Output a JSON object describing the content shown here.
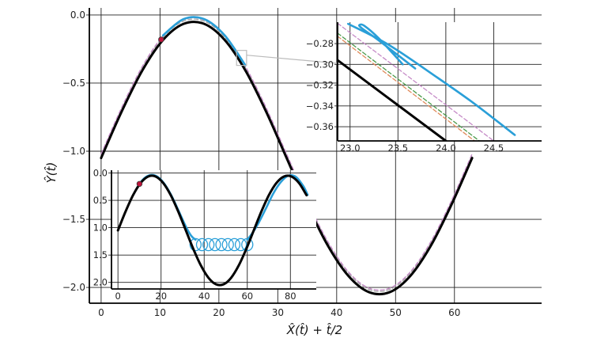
{
  "chart_data": [
    {
      "type": "line",
      "role": "main",
      "xlabel": "X̂(t̂) + t̂/2",
      "ylabel": "Ŷ(t̂)",
      "xlim": [
        -2,
        74.8
      ],
      "ylim": [
        -2.116,
        0.052
      ],
      "grid": true,
      "xticks": [
        0,
        10,
        20,
        30,
        40,
        50,
        60
      ],
      "xtick_labels": [
        "0",
        "10",
        "20",
        "30",
        "40",
        "50",
        "60"
      ],
      "yticks": [
        0,
        -0.5,
        -1.0,
        -1.5,
        -2.0
      ],
      "ytick_labels": [
        "0.0",
        "−0.5",
        "−1.0",
        "−1.5",
        "−2.0"
      ],
      "series": [
        {
          "color": "#a0a0a0",
          "style": "dashed",
          "x": [
            0,
            3.5,
            7,
            10.5,
            14,
            17.5,
            21,
            24.5,
            28,
            31.5,
            35,
            38.5,
            42,
            45.5,
            49,
            52.5,
            56,
            59.5,
            63
          ],
          "y": [
            -1.03,
            -0.688,
            -0.387,
            -0.164,
            -0.045,
            -0.045,
            -0.164,
            -0.387,
            -0.688,
            -1.03,
            -1.372,
            -1.673,
            -1.896,
            -2.015,
            -2.015,
            -1.896,
            -1.673,
            -1.372,
            -1.03
          ]
        },
        {
          "color": "#c58ac7",
          "style": "dashed",
          "x": [
            0,
            3.5,
            7,
            10.5,
            14,
            17.5,
            21,
            24.5,
            28,
            31.5,
            35,
            38.5,
            42,
            45.5,
            49,
            52.5,
            56,
            59.5,
            63
          ],
          "y": [
            -1.02,
            -0.678,
            -0.377,
            -0.154,
            -0.035,
            -0.035,
            -0.154,
            -0.377,
            -0.678,
            -1.02,
            -1.362,
            -1.663,
            -1.886,
            -2.005,
            -2.005,
            -1.886,
            -1.663,
            -1.362,
            -1.02
          ]
        },
        {
          "color": "#000000",
          "style": "solid",
          "x": [
            0,
            3.5,
            7,
            10.5,
            14,
            17.5,
            21,
            24.5,
            28,
            31.5,
            35,
            38.5,
            42,
            45.5,
            49,
            52.5,
            56,
            59.5,
            63
          ],
          "y": [
            -1.05,
            -0.708,
            -0.407,
            -0.184,
            -0.065,
            -0.065,
            -0.184,
            -0.407,
            -0.708,
            -1.05,
            -1.392,
            -1.693,
            -1.916,
            -2.035,
            -2.035,
            -1.916,
            -1.693,
            -1.392,
            -1.05
          ]
        },
        {
          "color": "#2a9fd8",
          "style": "solid",
          "x": [
            10.5,
            14,
            17.5,
            21,
            24.5
          ],
          "y": [
            -0.15,
            -0.03,
            -0.03,
            -0.15,
            -0.37
          ]
        }
      ],
      "marker": {
        "x": 10.2,
        "y": -0.18,
        "color": "#c0143c"
      },
      "zoom_box": {
        "x": [
          23,
          24.7
        ],
        "y": [
          -0.26,
          -0.37
        ]
      }
    },
    {
      "type": "line",
      "role": "inset-bottom-left",
      "xlim": [
        -3,
        92
      ],
      "ylim": [
        -2.12,
        0.05
      ],
      "grid": true,
      "xticks": [
        0,
        20,
        40,
        60,
        80
      ],
      "xtick_labels": [
        "0",
        "20",
        "40",
        "60",
        "80"
      ],
      "yticks": [
        0,
        -0.5,
        -1.0,
        -1.5,
        -2.0
      ],
      "ytick_labels": [
        "0.0",
        "0.5",
        "1.0",
        "1.5",
        "2.0"
      ],
      "series": [
        {
          "color": "#2a9fd8",
          "style": "solid",
          "x": [
            7,
            10.5,
            14,
            17.5,
            21,
            24.5,
            28,
            31.5,
            34,
            36
          ],
          "y": [
            -0.407,
            -0.17,
            -0.05,
            -0.05,
            -0.17,
            -0.39,
            -0.68,
            -0.98,
            -1.15,
            -1.22
          ]
        },
        {
          "color": "#2a9fd8",
          "style": "solid",
          "x": [
            60,
            62,
            65,
            68.5,
            72,
            75.5,
            79,
            82.5,
            86,
            88
          ],
          "y": [
            -1.22,
            -1.12,
            -0.93,
            -0.66,
            -0.38,
            -0.17,
            -0.05,
            -0.07,
            -0.24,
            -0.4
          ]
        },
        {
          "color": "#000000",
          "style": "solid",
          "x": [
            0,
            3.5,
            7,
            10.5,
            14,
            17.5,
            21,
            24.5,
            28,
            31.5,
            35,
            38.5,
            42,
            45.5,
            49,
            52.5,
            56,
            59.5,
            63,
            66.5,
            70,
            73.5,
            77,
            80.5,
            84,
            87.5
          ],
          "y": [
            -1.05,
            -0.708,
            -0.407,
            -0.184,
            -0.065,
            -0.065,
            -0.184,
            -0.407,
            -0.708,
            -1.05,
            -1.392,
            -1.693,
            -1.916,
            -2.035,
            -2.035,
            -1.916,
            -1.693,
            -1.392,
            -1.05,
            -0.708,
            -0.407,
            -0.184,
            -0.065,
            -0.065,
            -0.184,
            -0.407
          ]
        }
      ],
      "loops": {
        "color": "#2a9fd8",
        "centers_x": [
          36,
          39,
          42,
          45,
          48,
          51,
          54,
          57,
          60
        ],
        "y_top": -1.2,
        "y_bottom": -1.42
      },
      "marker": {
        "x": 10,
        "y": -0.2,
        "color": "#c0143c"
      }
    },
    {
      "type": "line",
      "role": "inset-zoom",
      "xlim": [
        22.87,
        25.0
      ],
      "ylim": [
        -0.3737,
        -0.2594
      ],
      "grid": true,
      "xticks": [
        23.0,
        23.5,
        24.0,
        24.5
      ],
      "xtick_labels": [
        "23.0",
        "23.5",
        "24.0",
        "24.5"
      ],
      "yticks": [
        -0.28,
        -0.3,
        -0.32,
        -0.34,
        -0.36
      ],
      "ytick_labels": [
        "−0.28",
        "−0.30",
        "−0.32",
        "−0.34",
        "−0.36"
      ],
      "series": [
        {
          "color": "#e08a5a",
          "style": "dashed",
          "x": [
            22.87,
            24.3
          ],
          "y": [
            -0.273,
            -0.3737
          ]
        },
        {
          "color": "#4a9a4a",
          "style": "dashed",
          "x": [
            22.87,
            24.35
          ],
          "y": [
            -0.27,
            -0.3737
          ]
        },
        {
          "color": "#c58ac7",
          "style": "dashed",
          "x": [
            22.87,
            24.5
          ],
          "y": [
            -0.2605,
            -0.3737
          ]
        },
        {
          "color": "#000000",
          "style": "solid",
          "x": [
            22.87,
            24.0
          ],
          "y": [
            -0.296,
            -0.3737
          ]
        },
        {
          "color": "#2a9fd8",
          "style": "solid",
          "x": [
            23.68,
            23.3,
            23.12,
            23.1,
            23.15,
            23.3,
            23.55
          ],
          "y": [
            -0.304,
            -0.277,
            -0.265,
            -0.262,
            -0.263,
            -0.275,
            -0.3
          ]
        },
        {
          "color": "#2a9fd8",
          "style": "solid",
          "x": [
            22.98,
            23.4,
            23.9,
            24.3,
            24.72
          ],
          "y": [
            -0.261,
            -0.281,
            -0.312,
            -0.338,
            -0.368
          ]
        }
      ]
    }
  ]
}
